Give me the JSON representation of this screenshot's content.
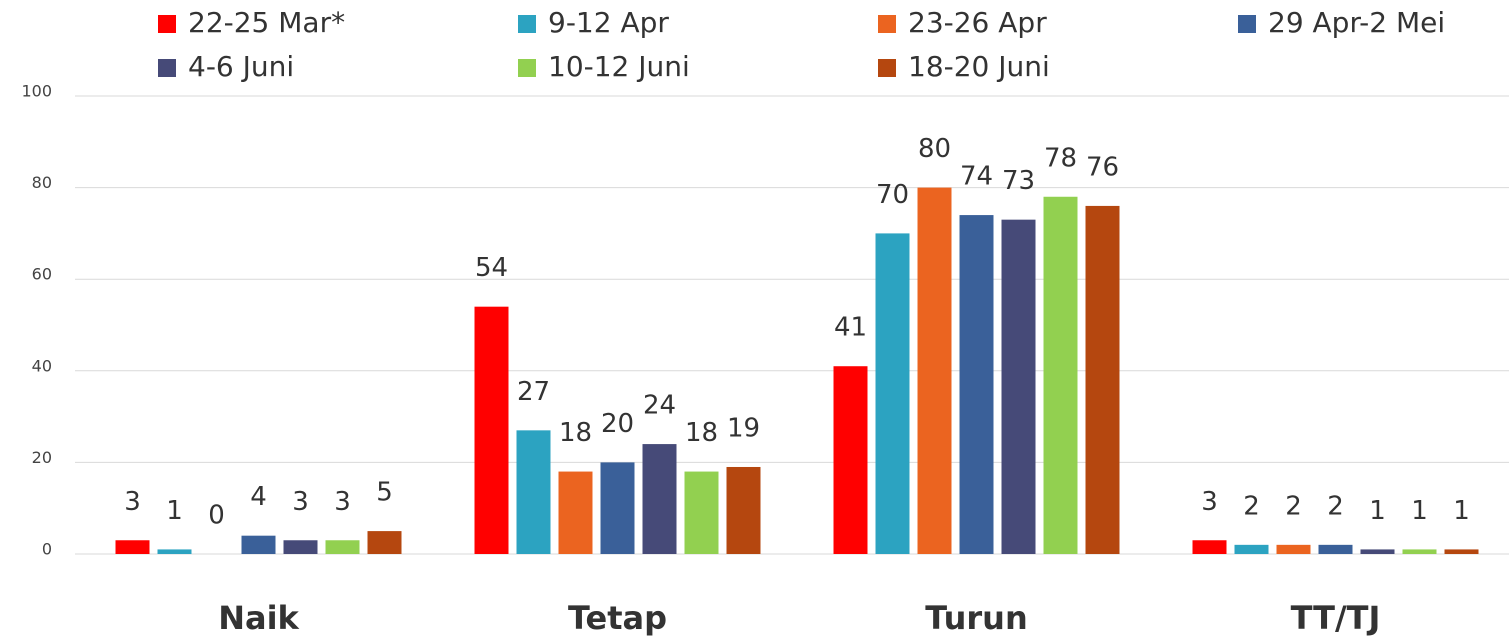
{
  "chart_data": {
    "type": "bar",
    "categories": [
      "Naik",
      "Tetap",
      "Turun",
      "TT/TJ"
    ],
    "series": [
      {
        "name": "22-25 Mar*",
        "color": "#ff0000",
        "values": [
          3,
          54,
          41,
          3
        ]
      },
      {
        "name": "9-12 Apr",
        "color": "#2ca3c1",
        "values": [
          1,
          27,
          70,
          2
        ]
      },
      {
        "name": "23-26 Apr",
        "color": "#eb6420",
        "values": [
          0,
          18,
          80,
          2
        ]
      },
      {
        "name": "29 Apr-2 Mei",
        "color": "#3a6099",
        "values": [
          4,
          20,
          74,
          2
        ]
      },
      {
        "name": "4-6 Juni",
        "color": "#464a78",
        "values": [
          3,
          24,
          73,
          1
        ]
      },
      {
        "name": "10-12 Juni",
        "color": "#92d050",
        "values": [
          3,
          18,
          78,
          1
        ]
      },
      {
        "name": "18-20 Juni",
        "color": "#b5470f",
        "values": [
          5,
          19,
          76,
          1
        ]
      }
    ],
    "ylim": [
      0,
      100
    ],
    "yticks": [
      0,
      20,
      40,
      60,
      80,
      100
    ],
    "grid": true,
    "legend": "top"
  }
}
